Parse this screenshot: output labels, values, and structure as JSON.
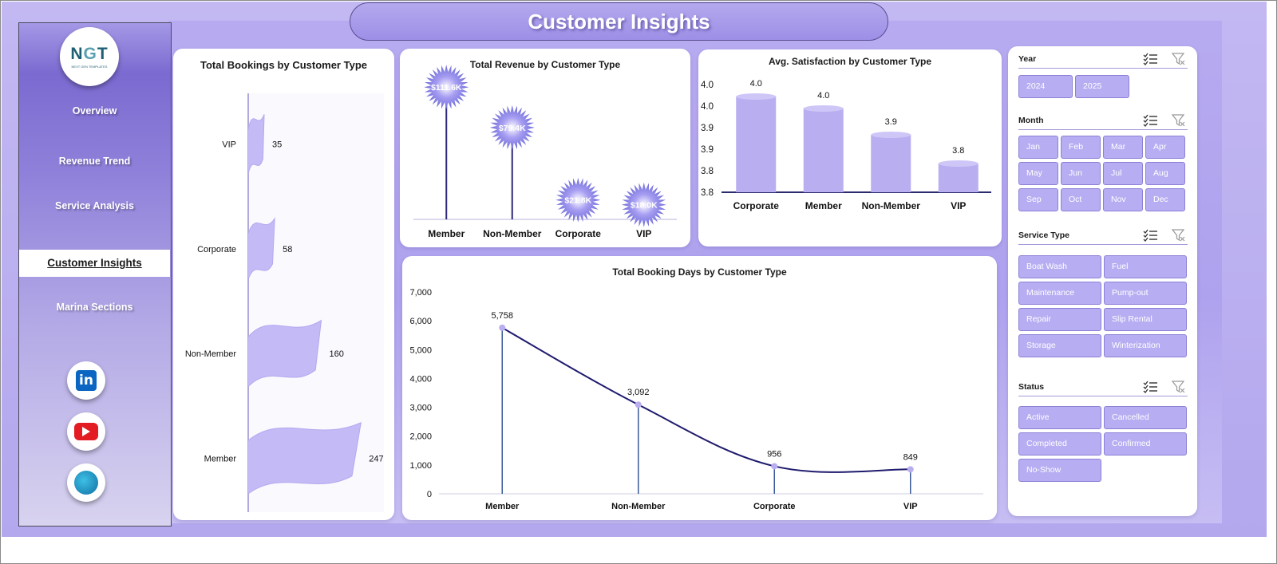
{
  "title": "Customer Insights",
  "logo": {
    "text_left": "N",
    "text_g": "G",
    "text_right": "T",
    "subtitle": "NEXT GEN TEMPLATES"
  },
  "nav": [
    "Overview",
    "Revenue Trend",
    "Service Analysis",
    "Customer Insights",
    "Marina Sections"
  ],
  "social": {
    "linkedin": "linkedin-icon",
    "youtube": "youtube-icon",
    "website": "globe-icon",
    "linkedin_glyph": "in"
  },
  "colors": {
    "accent": "#b7adf2",
    "bar": "#b9aef0",
    "line": "#1f1b6e",
    "stem": "#2e3a8f"
  },
  "charts": {
    "bookings": {
      "title": "Total Bookings by Customer Type",
      "chart_data": {
        "type": "bar",
        "orientation": "horizontal",
        "categories": [
          "VIP",
          "Corporate",
          "Non-Member",
          "Member"
        ],
        "values": [
          35,
          58,
          160,
          247
        ]
      }
    },
    "revenue": {
      "title": "Total Revenue by Customer Type",
      "chart_data": {
        "type": "bar",
        "style": "lollipop",
        "categories": [
          "Member",
          "Non-Member",
          "Corporate",
          "VIP"
        ],
        "values": [
          111.6,
          79.4,
          21.8,
          18.0
        ],
        "labels": [
          "$111.6K",
          "$79.4K",
          "$21.8K",
          "$18.0K"
        ]
      }
    },
    "satisfaction": {
      "title": "Avg. Satisfaction by Customer Type",
      "chart_data": {
        "type": "bar",
        "style": "cylinder",
        "categories": [
          "Corporate",
          "Member",
          "Non-Member",
          "VIP"
        ],
        "values": [
          4.0,
          4.0,
          3.9,
          3.8
        ],
        "ylim": [
          3.8,
          4.0
        ],
        "yticks": [
          "3.8",
          "3.8",
          "3.9",
          "3.9",
          "4.0",
          "4.0"
        ]
      }
    },
    "booking_days": {
      "title": "Total Booking Days by Customer Type",
      "chart_data": {
        "type": "line",
        "smooth": true,
        "categories": [
          "Member",
          "Non-Member",
          "Corporate",
          "VIP"
        ],
        "values": [
          5758,
          3092,
          956,
          849
        ],
        "labels": [
          "5,758",
          "3,092",
          "956",
          "849"
        ],
        "ylim": [
          0,
          7000
        ],
        "yticks": [
          "0",
          "1,000",
          "2,000",
          "3,000",
          "4,000",
          "5,000",
          "6,000",
          "7,000"
        ]
      }
    }
  },
  "slicers": [
    {
      "title": "Year",
      "items": [
        "2024",
        "2025"
      ]
    },
    {
      "title": "Month",
      "items": [
        "Jan",
        "Feb",
        "Mar",
        "Apr",
        "May",
        "Jun",
        "Jul",
        "Aug",
        "Sep",
        "Oct",
        "Nov",
        "Dec"
      ]
    },
    {
      "title": "Service Type",
      "items": [
        "Boat Wash",
        "Fuel",
        "Maintenance",
        "Pump-out",
        "Repair",
        "Slip Rental",
        "Storage",
        "Winterization"
      ]
    },
    {
      "title": "Status",
      "items": [
        "Active",
        "Cancelled",
        "Completed",
        "Confirmed",
        "No-Show"
      ]
    }
  ]
}
